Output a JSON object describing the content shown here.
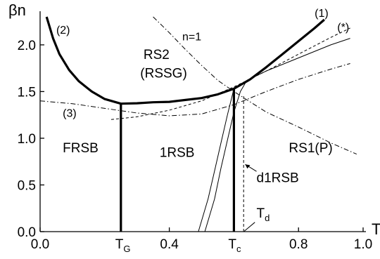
{
  "chart_data": {
    "type": "line",
    "title": "",
    "xlabel": "T",
    "ylabel": "βn",
    "xlim": [
      0.0,
      1.0
    ],
    "ylim": [
      0.0,
      2.3
    ],
    "grid": false,
    "legend": "none",
    "x_ticks": [
      {
        "value": 0.0,
        "label": "0.0"
      },
      {
        "value": 0.25,
        "label": "T",
        "sub": "G"
      },
      {
        "value": 0.4,
        "label": "0.4"
      },
      {
        "value": 0.6,
        "label": "T",
        "sub": "c"
      },
      {
        "value": 0.8,
        "label": "0.8"
      },
      {
        "value": 1.0,
        "label": "1.0"
      }
    ],
    "y_ticks": [
      {
        "value": 0.0,
        "label": "0.0"
      },
      {
        "value": 0.5,
        "label": "0.5"
      },
      {
        "value": 1.0,
        "label": "1.0"
      },
      {
        "value": 1.5,
        "label": "1.5"
      },
      {
        "value": 2.0,
        "label": "2.0"
      }
    ],
    "series": [
      {
        "id": "curve-2",
        "style": "thick-solid",
        "points": [
          [
            0.02,
            2.3
          ],
          [
            0.04,
            2.07
          ],
          [
            0.06,
            1.9
          ],
          [
            0.09,
            1.73
          ],
          [
            0.12,
            1.61
          ],
          [
            0.16,
            1.5
          ],
          [
            0.2,
            1.42
          ],
          [
            0.25,
            1.37
          ],
          [
            0.3,
            1.375
          ],
          [
            0.35,
            1.385
          ],
          [
            0.4,
            1.39
          ],
          [
            0.45,
            1.41
          ],
          [
            0.5,
            1.43
          ],
          [
            0.55,
            1.47
          ],
          [
            0.6,
            1.53
          ]
        ]
      },
      {
        "id": "curve-1",
        "style": "thick-solid",
        "points": [
          [
            0.6,
            1.53
          ],
          [
            0.65,
            1.63
          ],
          [
            0.7,
            1.76
          ],
          [
            0.75,
            1.9
          ],
          [
            0.8,
            2.04
          ],
          [
            0.85,
            2.18
          ],
          [
            0.88,
            2.27
          ]
        ]
      },
      {
        "id": "vline-TG",
        "style": "thick-solid",
        "points": [
          [
            0.25,
            0.0
          ],
          [
            0.25,
            1.37
          ]
        ]
      },
      {
        "id": "vline-Tc",
        "style": "thick-solid",
        "points": [
          [
            0.6,
            0.0
          ],
          [
            0.6,
            1.53
          ]
        ]
      },
      {
        "id": "vline-Td",
        "style": "dashed",
        "points": [
          [
            0.63,
            0.0
          ],
          [
            0.63,
            1.45
          ]
        ]
      },
      {
        "id": "curve-3",
        "style": "dash-dot",
        "points": [
          [
            0.0,
            1.4
          ],
          [
            0.1,
            1.37
          ],
          [
            0.2,
            1.32
          ],
          [
            0.3,
            1.27
          ],
          [
            0.4,
            1.24
          ],
          [
            0.5,
            1.26
          ],
          [
            0.6,
            1.36
          ],
          [
            0.7,
            1.5
          ],
          [
            0.8,
            1.63
          ],
          [
            0.9,
            1.74
          ],
          [
            0.96,
            1.8
          ]
        ]
      },
      {
        "id": "curve-n1",
        "style": "dash-dot",
        "points": [
          [
            0.35,
            2.3
          ],
          [
            0.4,
            2.13
          ],
          [
            0.45,
            1.95
          ],
          [
            0.5,
            1.78
          ],
          [
            0.55,
            1.62
          ],
          [
            0.6,
            1.5
          ],
          [
            0.65,
            1.39
          ],
          [
            0.7,
            1.28
          ],
          [
            0.8,
            1.12
          ],
          [
            0.9,
            0.95
          ],
          [
            0.98,
            0.83
          ]
        ]
      },
      {
        "id": "curve-star",
        "style": "dashed",
        "points": [
          [
            0.22,
            1.2
          ],
          [
            0.3,
            1.23
          ],
          [
            0.4,
            1.3
          ],
          [
            0.5,
            1.4
          ],
          [
            0.6,
            1.55
          ],
          [
            0.7,
            1.72
          ],
          [
            0.8,
            1.9
          ],
          [
            0.9,
            2.08
          ],
          [
            0.96,
            2.18
          ]
        ]
      },
      {
        "id": "curve-thin-1",
        "style": "thin-solid",
        "points": [
          [
            0.49,
            0.0
          ],
          [
            0.52,
            0.35
          ],
          [
            0.54,
            0.65
          ],
          [
            0.56,
            0.95
          ],
          [
            0.58,
            1.25
          ],
          [
            0.6,
            1.53
          ]
        ]
      },
      {
        "id": "curve-thin-2",
        "style": "thin-solid",
        "points": [
          [
            0.51,
            0.0
          ],
          [
            0.54,
            0.35
          ],
          [
            0.56,
            0.68
          ],
          [
            0.58,
            0.98
          ],
          [
            0.6,
            1.28
          ],
          [
            0.62,
            1.5
          ],
          [
            0.64,
            1.62
          ],
          [
            0.7,
            1.72
          ],
          [
            0.8,
            1.86
          ],
          [
            0.9,
            2.0
          ],
          [
            0.96,
            2.07
          ]
        ]
      }
    ],
    "annotations": [
      {
        "text": "(1)",
        "x": 0.85,
        "y": 2.3
      },
      {
        "text": "(*)",
        "x": 0.92,
        "y": 2.15
      },
      {
        "text": "(2)",
        "x": 0.05,
        "y": 2.12
      },
      {
        "text": "(3)",
        "x": 0.07,
        "y": 1.23
      },
      {
        "text": "n=1",
        "x": 0.44,
        "y": 2.05
      },
      {
        "text": "RS2",
        "x": 0.32,
        "y": 1.85
      },
      {
        "text": "(RSSG)",
        "x": 0.31,
        "y": 1.65
      },
      {
        "text": "FRSB",
        "x": 0.07,
        "y": 0.85
      },
      {
        "text": "1RSB",
        "x": 0.37,
        "y": 0.8
      },
      {
        "text": "RS1(P)",
        "x": 0.77,
        "y": 0.85
      },
      {
        "text": "d1RSB",
        "x": 0.67,
        "y": 0.53
      },
      {
        "text": "T",
        "sub": "d",
        "x": 0.67,
        "y": 0.15
      }
    ]
  }
}
